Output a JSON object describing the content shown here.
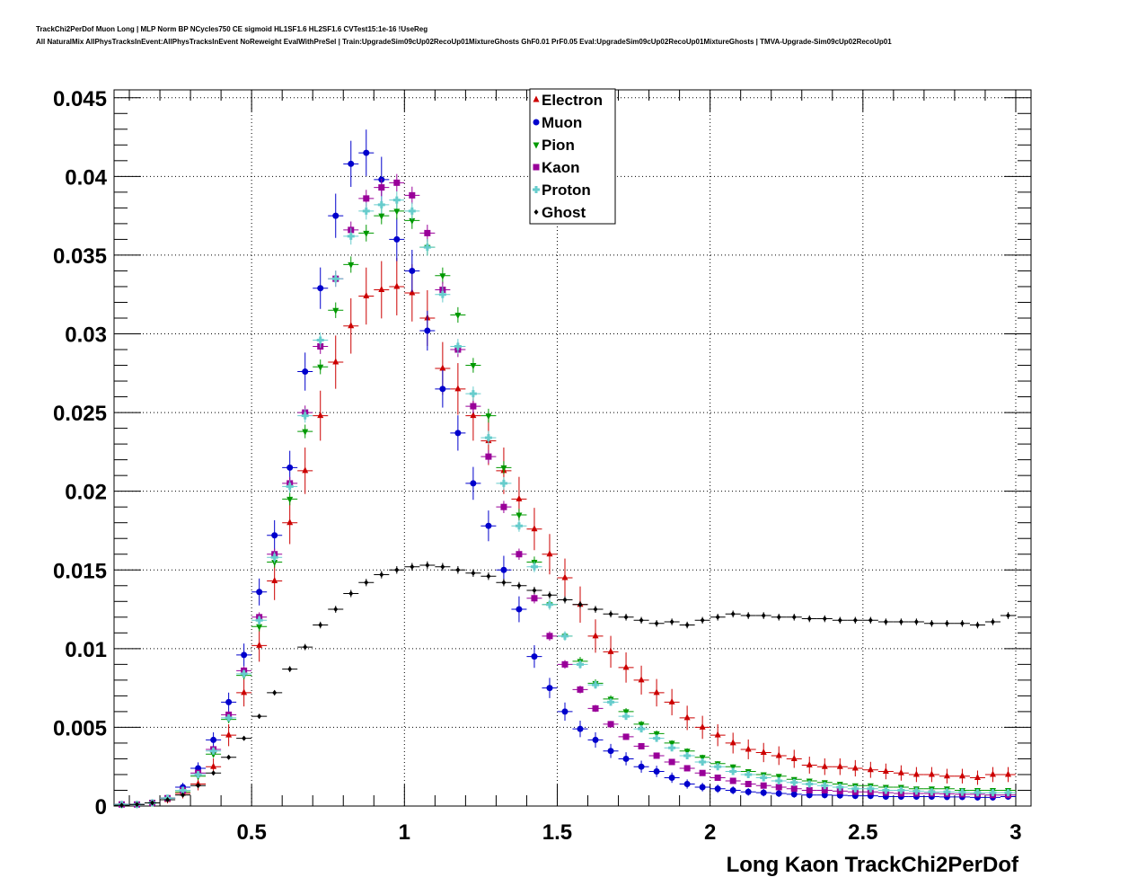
{
  "title": {
    "line1": "TrackChi2PerDof Muon Long | MLP Norm BP NCycles750 CE sigmoid HL1SF1.6 HL2SF1.6 CVTest15:1e-16 !UseReg",
    "line2": "All NaturalMix AllPhysTracksInEvent:AllPhysTracksInEvent NoReweight EvalWithPreSel | Train:UpgradeSim09cUp02RecoUp01MixtureGhosts GhF0.01 PrF0.05 Eval:UpgradeSim09cUp02RecoUp01MixtureGhosts | TMVA-Upgrade-Sim09cUp02RecoUp01"
  },
  "chart_data": {
    "type": "scatter",
    "xlabel": "Long Kaon TrackChi2PerDof",
    "ylabel": "",
    "xlim": [
      0.05,
      3.05
    ],
    "ylim": [
      0,
      0.0455
    ],
    "xticks": [
      "0.5",
      "1",
      "1.5",
      "2",
      "2.5",
      "3"
    ],
    "xtick_values": [
      0.5,
      1,
      1.5,
      2,
      2.5,
      3
    ],
    "yticks": [
      "0",
      "0.005",
      "0.01",
      "0.015",
      "0.02",
      "0.025",
      "0.03",
      "0.035",
      "0.04",
      "0.045"
    ],
    "ytick_values": [
      0,
      0.005,
      0.01,
      0.015,
      0.02,
      0.025,
      0.03,
      0.035,
      0.04,
      0.045
    ],
    "grid": true,
    "legend_position": "top-center",
    "x": [
      0.075,
      0.125,
      0.175,
      0.225,
      0.275,
      0.325,
      0.375,
      0.425,
      0.475,
      0.525,
      0.575,
      0.625,
      0.675,
      0.725,
      0.775,
      0.825,
      0.875,
      0.925,
      0.975,
      1.025,
      1.075,
      1.125,
      1.175,
      1.225,
      1.275,
      1.325,
      1.375,
      1.425,
      1.475,
      1.525,
      1.575,
      1.625,
      1.675,
      1.725,
      1.775,
      1.825,
      1.875,
      1.925,
      1.975,
      2.025,
      2.075,
      2.125,
      2.175,
      2.225,
      2.275,
      2.325,
      2.375,
      2.425,
      2.475,
      2.525,
      2.575,
      2.625,
      2.675,
      2.725,
      2.775,
      2.825,
      2.875,
      2.925,
      2.975
    ],
    "series": [
      {
        "name": "Electron",
        "color": "#cc0000",
        "marker": "triangle-up",
        "values": [
          0.0001,
          0.0001,
          0.0002,
          0.0004,
          0.0008,
          0.0014,
          0.0025,
          0.0045,
          0.0072,
          0.0102,
          0.0143,
          0.018,
          0.0213,
          0.0248,
          0.0282,
          0.0305,
          0.0324,
          0.0328,
          0.033,
          0.0326,
          0.031,
          0.0278,
          0.0265,
          0.0248,
          0.0232,
          0.0213,
          0.0195,
          0.0176,
          0.016,
          0.0145,
          0.0128,
          0.0108,
          0.0098,
          0.0088,
          0.008,
          0.0072,
          0.0066,
          0.0056,
          0.005,
          0.0045,
          0.004,
          0.0036,
          0.0034,
          0.0032,
          0.003,
          0.0026,
          0.0025,
          0.0025,
          0.0024,
          0.0023,
          0.0022,
          0.0021,
          0.002,
          0.002,
          0.0019,
          0.0019,
          0.0018,
          0.002,
          0.002
        ]
      },
      {
        "name": "Muon",
        "color": "#0000cc",
        "marker": "circle",
        "values": [
          0.0001,
          0.0001,
          0.0002,
          0.0005,
          0.0012,
          0.0024,
          0.0042,
          0.0066,
          0.0096,
          0.0136,
          0.0172,
          0.0215,
          0.0276,
          0.0329,
          0.0375,
          0.0408,
          0.0415,
          0.0398,
          0.036,
          0.034,
          0.0302,
          0.0265,
          0.0237,
          0.0205,
          0.0178,
          0.015,
          0.0125,
          0.0095,
          0.0075,
          0.006,
          0.0049,
          0.0042,
          0.0035,
          0.003,
          0.0025,
          0.0022,
          0.0018,
          0.0014,
          0.0012,
          0.0011,
          0.001,
          0.0009,
          0.00085,
          0.0008,
          0.00075,
          0.0007,
          0.0007,
          0.00068,
          0.00065,
          0.00065,
          0.0006,
          0.0006,
          0.0006,
          0.0006,
          0.00058,
          0.00058,
          0.00055,
          0.00055,
          0.0006
        ]
      },
      {
        "name": "Pion",
        "color": "#009900",
        "marker": "triangle-down",
        "values": [
          0.0001,
          0.0001,
          0.0002,
          0.0005,
          0.0009,
          0.0019,
          0.0033,
          0.0055,
          0.0083,
          0.0114,
          0.0155,
          0.0195,
          0.0238,
          0.0279,
          0.0315,
          0.0344,
          0.0364,
          0.0375,
          0.0378,
          0.0372,
          0.0355,
          0.0337,
          0.0312,
          0.028,
          0.0248,
          0.0215,
          0.0185,
          0.0155,
          0.0128,
          0.0108,
          0.0092,
          0.0078,
          0.0068,
          0.006,
          0.0052,
          0.0046,
          0.004,
          0.0035,
          0.0031,
          0.0027,
          0.0025,
          0.0022,
          0.002,
          0.0019,
          0.0017,
          0.0016,
          0.0015,
          0.0014,
          0.0013,
          0.0013,
          0.0012,
          0.0012,
          0.0011,
          0.0011,
          0.0011,
          0.001,
          0.001,
          0.001,
          0.001
        ]
      },
      {
        "name": "Kaon",
        "color": "#990099",
        "marker": "square",
        "values": [
          0.0001,
          0.0001,
          0.0002,
          0.0005,
          0.001,
          0.0021,
          0.0036,
          0.0058,
          0.0086,
          0.012,
          0.016,
          0.0205,
          0.025,
          0.0292,
          0.0335,
          0.0366,
          0.0386,
          0.0393,
          0.0396,
          0.0388,
          0.0364,
          0.0328,
          0.029,
          0.0254,
          0.0222,
          0.019,
          0.016,
          0.0132,
          0.0108,
          0.009,
          0.0074,
          0.0062,
          0.0052,
          0.0044,
          0.0038,
          0.0032,
          0.0028,
          0.0024,
          0.0021,
          0.0018,
          0.0016,
          0.0014,
          0.0013,
          0.0012,
          0.0011,
          0.001,
          0.001,
          0.00095,
          0.0009,
          0.0009,
          0.00085,
          0.0008,
          0.0008,
          0.0008,
          0.00078,
          0.00075,
          0.00075,
          0.0007,
          0.0007
        ]
      },
      {
        "name": "Proton",
        "color": "#66cccc",
        "marker": "cross",
        "values": [
          0.0001,
          0.0001,
          0.0002,
          0.0005,
          0.001,
          0.002,
          0.0035,
          0.0056,
          0.0084,
          0.0118,
          0.0158,
          0.0203,
          0.0248,
          0.0296,
          0.0335,
          0.0362,
          0.0378,
          0.0382,
          0.0385,
          0.0378,
          0.0355,
          0.0325,
          0.0292,
          0.0262,
          0.0234,
          0.0205,
          0.0178,
          0.0152,
          0.0128,
          0.0108,
          0.009,
          0.0077,
          0.0066,
          0.0057,
          0.0049,
          0.0043,
          0.0037,
          0.0032,
          0.0028,
          0.0025,
          0.0022,
          0.002,
          0.0018,
          0.0016,
          0.0015,
          0.0014,
          0.0013,
          0.0012,
          0.0011,
          0.0011,
          0.001,
          0.001,
          0.00095,
          0.0009,
          0.0009,
          0.00088,
          0.00085,
          0.00085,
          0.00085
        ]
      },
      {
        "name": "Ghost",
        "color": "#000000",
        "marker": "diamond",
        "values": [
          5e-05,
          0.0001,
          0.0002,
          0.0004,
          0.0007,
          0.0013,
          0.0021,
          0.0031,
          0.0043,
          0.0057,
          0.0072,
          0.0087,
          0.0101,
          0.0115,
          0.0125,
          0.0135,
          0.0142,
          0.0147,
          0.015,
          0.0152,
          0.0153,
          0.0152,
          0.015,
          0.0148,
          0.0146,
          0.0142,
          0.014,
          0.0137,
          0.0134,
          0.0131,
          0.0128,
          0.0125,
          0.0122,
          0.012,
          0.0118,
          0.0116,
          0.0117,
          0.0115,
          0.0118,
          0.012,
          0.0122,
          0.0121,
          0.0121,
          0.012,
          0.012,
          0.0119,
          0.0119,
          0.0118,
          0.0118,
          0.0118,
          0.0117,
          0.0117,
          0.0117,
          0.0116,
          0.0116,
          0.0116,
          0.0115,
          0.0117,
          0.0121
        ]
      }
    ]
  }
}
